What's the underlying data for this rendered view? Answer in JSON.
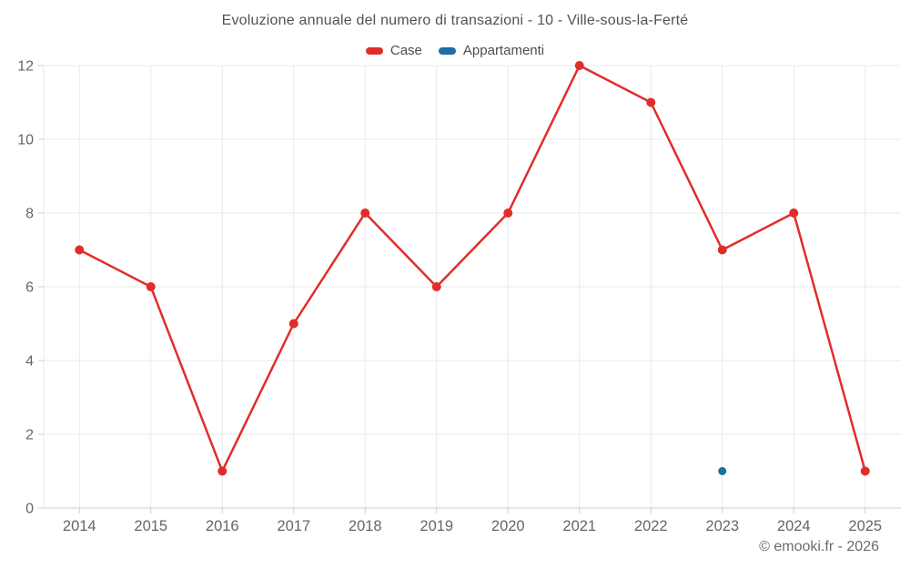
{
  "title": "Evoluzione annuale del numero di transazioni - 10 - Ville-sous-la-Ferté",
  "footer": "© emooki.fr - 2026",
  "legend": {
    "items": [
      {
        "label": "Case",
        "color": "#e12d2a"
      },
      {
        "label": "Appartamenti",
        "color": "#1c6ea4"
      }
    ]
  },
  "colors": {
    "case_red": "#e12d2a",
    "appartamenti_blue": "#1c6ea4",
    "gridline": "#e9e9e9",
    "axis_line": "#cfcfcf",
    "tick_label": "#666666"
  },
  "chart_data": {
    "type": "line",
    "title": "Evoluzione annuale del numero di transazioni - 10 - Ville-sous-la-Ferté",
    "x": [
      2014,
      2015,
      2016,
      2017,
      2018,
      2019,
      2020,
      2021,
      2022,
      2023,
      2024,
      2025
    ],
    "series": [
      {
        "name": "Case",
        "color": "#e12d2a",
        "values": [
          7,
          6,
          1,
          5,
          8,
          6,
          8,
          12,
          11,
          7,
          8,
          1
        ],
        "line": true,
        "marker_radius": 5
      },
      {
        "name": "Appartamenti",
        "color": "#1c6ea4",
        "values": [
          null,
          null,
          null,
          null,
          null,
          null,
          null,
          null,
          null,
          1,
          null,
          null
        ],
        "line": true,
        "marker_radius": 4.5
      }
    ],
    "xlabel": "",
    "ylabel": "",
    "ylim": [
      0,
      12
    ],
    "ytick_interval": 2,
    "yticks": [
      0,
      2,
      4,
      6,
      8,
      10,
      12
    ],
    "grid": true,
    "legend_position": "top"
  }
}
